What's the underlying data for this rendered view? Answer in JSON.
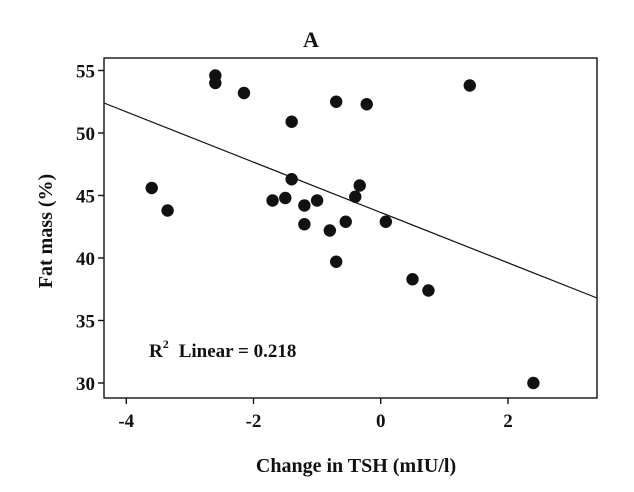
{
  "chart_data": {
    "type": "scatter",
    "title": "A",
    "xlabel": "Change in TSH (mIU/l)",
    "ylabel": "Fat mass (%)",
    "xlim": [
      -4.35,
      3.4
    ],
    "ylim": [
      28.8,
      56.0
    ],
    "xticks": [
      -4,
      -2,
      0,
      2
    ],
    "yticks": [
      30,
      35,
      40,
      45,
      50,
      55
    ],
    "xtick_labels": [
      "-4",
      "-2",
      "0",
      "2"
    ],
    "ytick_labels": [
      "30",
      "35",
      "40",
      "45",
      "50",
      "55"
    ],
    "points": [
      {
        "x": -3.6,
        "y": 45.6
      },
      {
        "x": -3.35,
        "y": 43.8
      },
      {
        "x": -2.6,
        "y": 54.6
      },
      {
        "x": -2.6,
        "y": 54.0
      },
      {
        "x": -2.15,
        "y": 53.2
      },
      {
        "x": -1.7,
        "y": 44.6
      },
      {
        "x": -1.5,
        "y": 44.8
      },
      {
        "x": -1.4,
        "y": 50.9
      },
      {
        "x": -1.4,
        "y": 46.3
      },
      {
        "x": -1.2,
        "y": 44.2
      },
      {
        "x": -1.2,
        "y": 42.7
      },
      {
        "x": -1.0,
        "y": 44.6
      },
      {
        "x": -0.8,
        "y": 42.2
      },
      {
        "x": -0.7,
        "y": 52.5
      },
      {
        "x": -0.7,
        "y": 39.7
      },
      {
        "x": -0.55,
        "y": 42.9
      },
      {
        "x": -0.4,
        "y": 44.9
      },
      {
        "x": -0.33,
        "y": 45.8
      },
      {
        "x": -0.22,
        "y": 52.3
      },
      {
        "x": 0.08,
        "y": 42.9
      },
      {
        "x": 0.5,
        "y": 38.3
      },
      {
        "x": 0.75,
        "y": 37.4
      },
      {
        "x": 1.4,
        "y": 53.8
      },
      {
        "x": 2.4,
        "y": 30.0
      }
    ],
    "fit_line": {
      "type": "linear",
      "x": [
        -4.35,
        3.4
      ],
      "y": [
        52.4,
        36.8
      ]
    },
    "annotation": {
      "r_label": "R",
      "superscript": "2",
      "text": "Linear = 0.218"
    },
    "grid": false,
    "legend": "none"
  }
}
